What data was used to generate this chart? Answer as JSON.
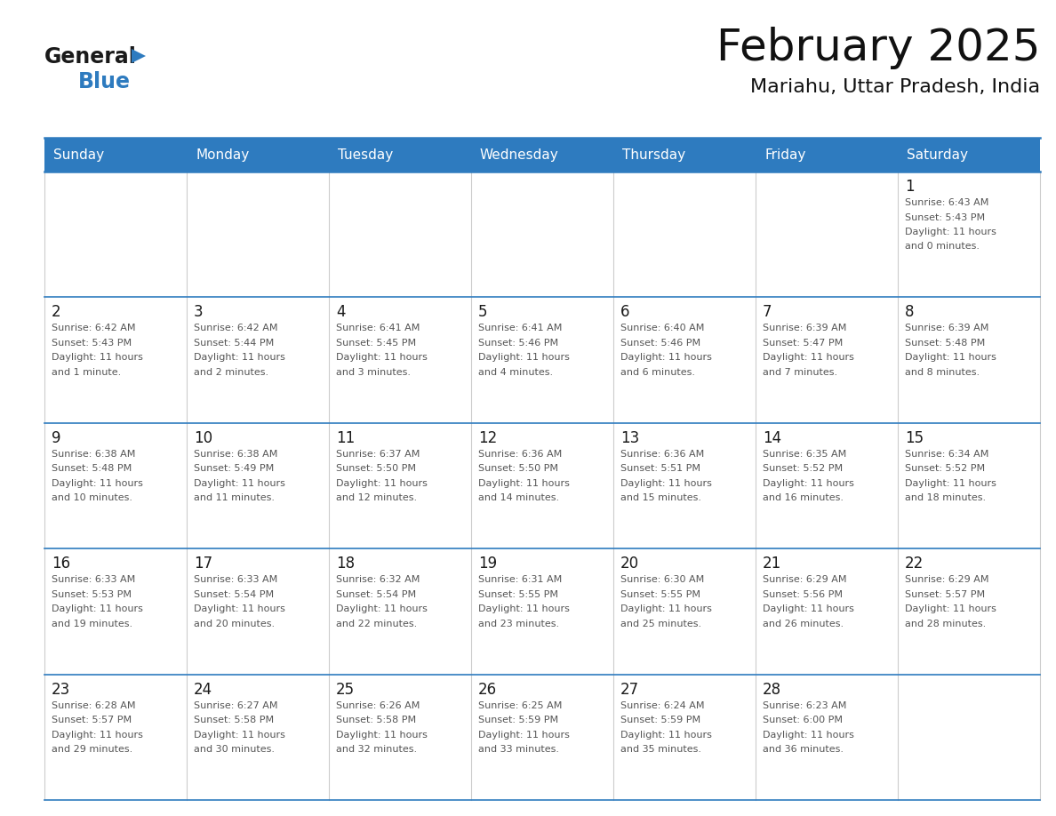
{
  "title": "February 2025",
  "subtitle": "Mariahu, Uttar Pradesh, India",
  "header_color": "#2E7BBF",
  "header_text_color": "#FFFFFF",
  "grid_line_color": "#2E7BBF",
  "day_number_color": "#1a1a1a",
  "cell_text_color": "#555555",
  "logo_general_color": "#1a1a1a",
  "logo_blue_color": "#2E7BBF",
  "logo_triangle_color": "#2E7BBF",
  "days_of_week": [
    "Sunday",
    "Monday",
    "Tuesday",
    "Wednesday",
    "Thursday",
    "Friday",
    "Saturday"
  ],
  "calendar_data": [
    [
      {
        "day": null
      },
      {
        "day": null
      },
      {
        "day": null
      },
      {
        "day": null
      },
      {
        "day": null
      },
      {
        "day": null
      },
      {
        "day": 1,
        "sunrise": "6:43 AM",
        "sunset": "5:43 PM",
        "daylight": "11 hours and 0 minutes."
      }
    ],
    [
      {
        "day": 2,
        "sunrise": "6:42 AM",
        "sunset": "5:43 PM",
        "daylight": "11 hours and 1 minute."
      },
      {
        "day": 3,
        "sunrise": "6:42 AM",
        "sunset": "5:44 PM",
        "daylight": "11 hours and 2 minutes."
      },
      {
        "day": 4,
        "sunrise": "6:41 AM",
        "sunset": "5:45 PM",
        "daylight": "11 hours and 3 minutes."
      },
      {
        "day": 5,
        "sunrise": "6:41 AM",
        "sunset": "5:46 PM",
        "daylight": "11 hours and 4 minutes."
      },
      {
        "day": 6,
        "sunrise": "6:40 AM",
        "sunset": "5:46 PM",
        "daylight": "11 hours and 6 minutes."
      },
      {
        "day": 7,
        "sunrise": "6:39 AM",
        "sunset": "5:47 PM",
        "daylight": "11 hours and 7 minutes."
      },
      {
        "day": 8,
        "sunrise": "6:39 AM",
        "sunset": "5:48 PM",
        "daylight": "11 hours and 8 minutes."
      }
    ],
    [
      {
        "day": 9,
        "sunrise": "6:38 AM",
        "sunset": "5:48 PM",
        "daylight": "11 hours and 10 minutes."
      },
      {
        "day": 10,
        "sunrise": "6:38 AM",
        "sunset": "5:49 PM",
        "daylight": "11 hours and 11 minutes."
      },
      {
        "day": 11,
        "sunrise": "6:37 AM",
        "sunset": "5:50 PM",
        "daylight": "11 hours and 12 minutes."
      },
      {
        "day": 12,
        "sunrise": "6:36 AM",
        "sunset": "5:50 PM",
        "daylight": "11 hours and 14 minutes."
      },
      {
        "day": 13,
        "sunrise": "6:36 AM",
        "sunset": "5:51 PM",
        "daylight": "11 hours and 15 minutes."
      },
      {
        "day": 14,
        "sunrise": "6:35 AM",
        "sunset": "5:52 PM",
        "daylight": "11 hours and 16 minutes."
      },
      {
        "day": 15,
        "sunrise": "6:34 AM",
        "sunset": "5:52 PM",
        "daylight": "11 hours and 18 minutes."
      }
    ],
    [
      {
        "day": 16,
        "sunrise": "6:33 AM",
        "sunset": "5:53 PM",
        "daylight": "11 hours and 19 minutes."
      },
      {
        "day": 17,
        "sunrise": "6:33 AM",
        "sunset": "5:54 PM",
        "daylight": "11 hours and 20 minutes."
      },
      {
        "day": 18,
        "sunrise": "6:32 AM",
        "sunset": "5:54 PM",
        "daylight": "11 hours and 22 minutes."
      },
      {
        "day": 19,
        "sunrise": "6:31 AM",
        "sunset": "5:55 PM",
        "daylight": "11 hours and 23 minutes."
      },
      {
        "day": 20,
        "sunrise": "6:30 AM",
        "sunset": "5:55 PM",
        "daylight": "11 hours and 25 minutes."
      },
      {
        "day": 21,
        "sunrise": "6:29 AM",
        "sunset": "5:56 PM",
        "daylight": "11 hours and 26 minutes."
      },
      {
        "day": 22,
        "sunrise": "6:29 AM",
        "sunset": "5:57 PM",
        "daylight": "11 hours and 28 minutes."
      }
    ],
    [
      {
        "day": 23,
        "sunrise": "6:28 AM",
        "sunset": "5:57 PM",
        "daylight": "11 hours and 29 minutes."
      },
      {
        "day": 24,
        "sunrise": "6:27 AM",
        "sunset": "5:58 PM",
        "daylight": "11 hours and 30 minutes."
      },
      {
        "day": 25,
        "sunrise": "6:26 AM",
        "sunset": "5:58 PM",
        "daylight": "11 hours and 32 minutes."
      },
      {
        "day": 26,
        "sunrise": "6:25 AM",
        "sunset": "5:59 PM",
        "daylight": "11 hours and 33 minutes."
      },
      {
        "day": 27,
        "sunrise": "6:24 AM",
        "sunset": "5:59 PM",
        "daylight": "11 hours and 35 minutes."
      },
      {
        "day": 28,
        "sunrise": "6:23 AM",
        "sunset": "6:00 PM",
        "daylight": "11 hours and 36 minutes."
      },
      {
        "day": null
      }
    ]
  ],
  "fig_width": 11.88,
  "fig_height": 9.18,
  "dpi": 100
}
